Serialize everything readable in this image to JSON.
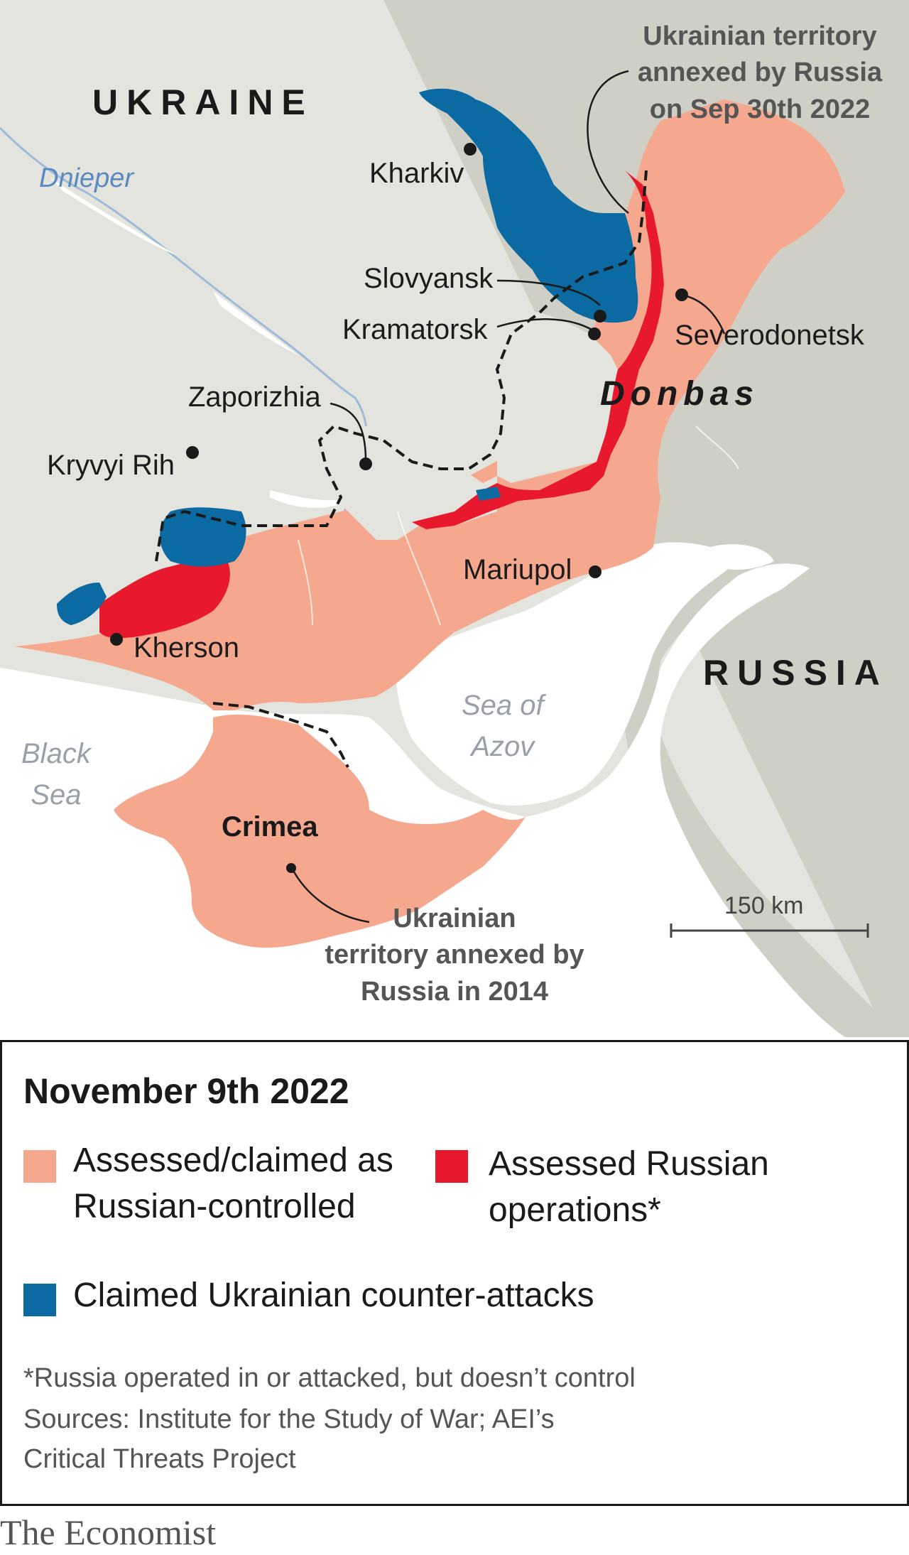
{
  "map": {
    "country_ukraine": "UKRAINE",
    "country_russia": "RUSSIA",
    "river_dnieper": "Dnieper",
    "region_donbas": "Donbas",
    "region_crimea": "Crimea",
    "sea_black": [
      "Black",
      "Sea"
    ],
    "sea_azov": [
      "Sea of",
      "Azov"
    ],
    "cities": [
      {
        "name": "Kharkiv"
      },
      {
        "name": "Slovyansk"
      },
      {
        "name": "Kramatorsk"
      },
      {
        "name": "Severodonetsk"
      },
      {
        "name": "Zaporizhia"
      },
      {
        "name": "Kryvyi Rih"
      },
      {
        "name": "Mariupol"
      },
      {
        "name": "Kherson"
      }
    ],
    "annotation_2022": [
      "Ukrainian territory",
      "annexed by Russia",
      "on Sep 30th 2022"
    ],
    "annotation_2014": [
      "Ukrainian",
      "territory annexed by",
      "Russia in 2014"
    ],
    "scale_label": "150 km",
    "colors": {
      "ukraine_land": "#e4e4df",
      "russia_land": "#cfcfc6",
      "water": "#ffffff",
      "russian_controlled": "#f6a88f",
      "russian_operations": "#e8192c",
      "ukrainian_counterattacks": "#0a6aa1",
      "river": "#9dbbd8"
    }
  },
  "legend": {
    "title": "November 9th 2022",
    "items": [
      {
        "label": [
          "Assessed/claimed as",
          "Russian-controlled"
        ],
        "color": "#f6a88f"
      },
      {
        "label": [
          "Assessed Russian",
          "operations*"
        ],
        "color": "#e8192c"
      },
      {
        "label": [
          "Claimed Ukrainian counter-attacks"
        ],
        "color": "#0a6aa1"
      }
    ],
    "footnote": "*Russia operated in or attacked, but doesn’t control",
    "sources": [
      "Sources: Institute for the Study of War; AEI’s",
      "Critical Threats Project"
    ]
  },
  "brand": "The Economist"
}
